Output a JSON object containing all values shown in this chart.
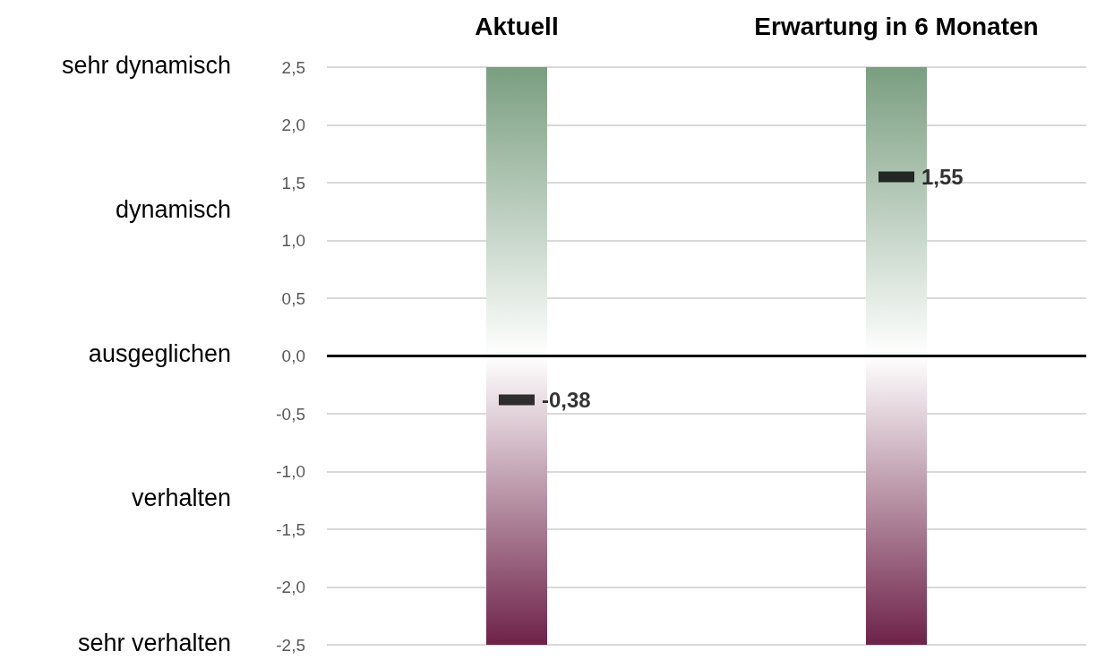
{
  "chart_data": {
    "type": "bar",
    "categories": [
      "Aktuell",
      "Erwartung in 6 Monaten"
    ],
    "series": [
      {
        "type": "bar",
        "color": "#7a9e80",
        "values": [
          2.5,
          2.5
        ]
      },
      {
        "type": "bar",
        "color": "#6e2249",
        "values": [
          -2.5,
          -2.5
        ]
      },
      {
        "type": "scatter",
        "color": "#000000",
        "x": [
          "Aktuell",
          "Erwartung in 6 Monaten"
        ],
        "values": [
          -0.38,
          1.55
        ],
        "value_labels": [
          "-0,38",
          "1,55"
        ]
      }
    ],
    "stacked": true,
    "marker": "square",
    "ylim": [
      -2.5,
      2.5
    ],
    "yticks": [
      {
        "value": -2.5,
        "label": "-2,5"
      },
      {
        "value": -2.0,
        "label": "-2,0"
      },
      {
        "value": -1.5,
        "label": "-1,5"
      },
      {
        "value": -1.0,
        "label": "-1,0"
      },
      {
        "value": -0.5,
        "label": "-0,5"
      },
      {
        "value": 0,
        "label": "0,0"
      },
      {
        "value": 0.5,
        "label": "0,5"
      },
      {
        "value": 1.0,
        "label": "1,0"
      },
      {
        "value": 1.5,
        "label": "1,5"
      },
      {
        "value": 2.0,
        "label": "2,0"
      },
      {
        "value": 2.5,
        "label": "2,5"
      }
    ],
    "grid": "y",
    "ref_lines": [
      {
        "axis": "y",
        "value": 0,
        "color": "#000000"
      }
    ],
    "annotations": [
      "sehr dynamisch",
      "dynamisch",
      "ausgeglichen",
      "verhalten",
      "sehr verhalten"
    ]
  }
}
